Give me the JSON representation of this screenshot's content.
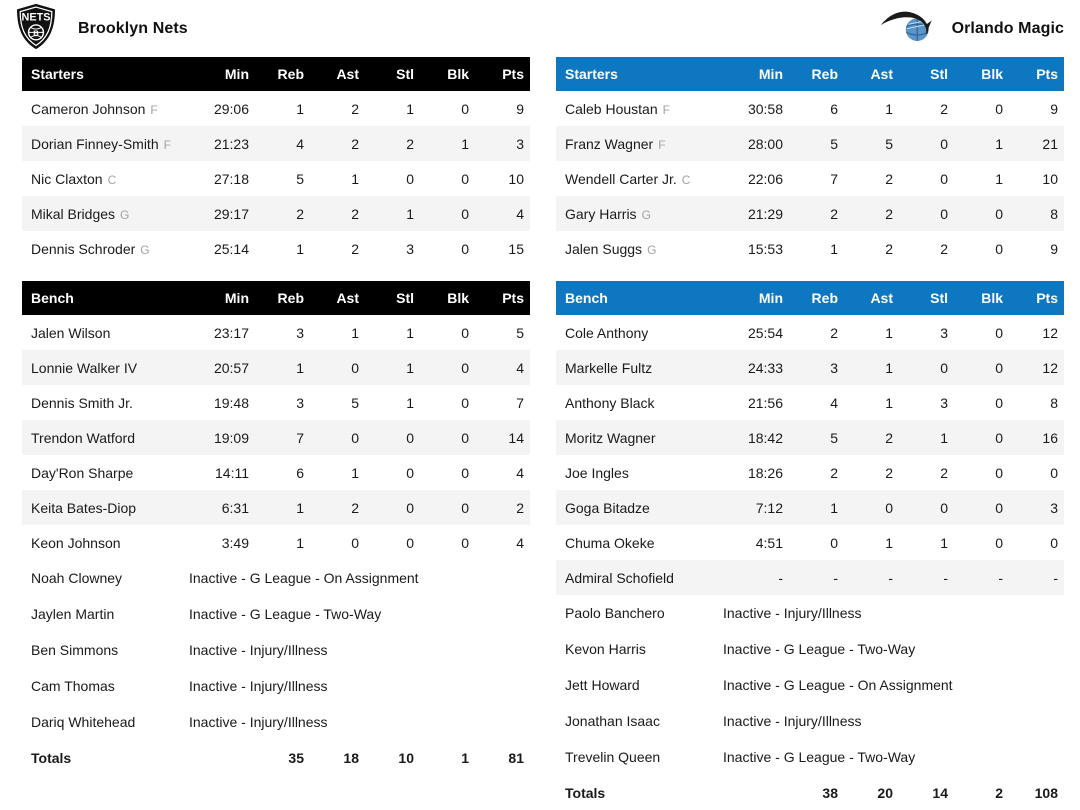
{
  "header": {
    "home": {
      "name": "Brooklyn Nets"
    },
    "away": {
      "name": "Orlando Magic"
    }
  },
  "colors": {
    "nets_accent": "#000000",
    "magic_accent": "#0e77c2",
    "alt_row": "#f4f4f4",
    "position_letter_gray": "#a3a3a3",
    "magic_ball_blue": "#5a94c8",
    "logo_black": "#111111"
  },
  "teams": [
    {
      "name": "Brooklyn Nets",
      "slug": "nets",
      "accent": "#000000",
      "starters_label": "Starters",
      "bench_label": "Bench",
      "stat_columns": [
        "Min",
        "Reb",
        "Ast",
        "Stl",
        "Blk",
        "Pts"
      ],
      "starters": [
        {
          "name": "Cameron Johnson",
          "pos": "F",
          "stats": [
            "29:06",
            "1",
            "2",
            "1",
            "0",
            "9"
          ]
        },
        {
          "name": "Dorian Finney-Smith",
          "pos": "F",
          "stats": [
            "21:23",
            "4",
            "2",
            "2",
            "1",
            "3"
          ]
        },
        {
          "name": "Nic Claxton",
          "pos": "C",
          "stats": [
            "27:18",
            "5",
            "1",
            "0",
            "0",
            "10"
          ]
        },
        {
          "name": "Mikal Bridges",
          "pos": "G",
          "stats": [
            "29:17",
            "2",
            "2",
            "1",
            "0",
            "4"
          ]
        },
        {
          "name": "Dennis Schroder",
          "pos": "G",
          "stats": [
            "25:14",
            "1",
            "2",
            "3",
            "0",
            "15"
          ]
        }
      ],
      "bench": [
        {
          "name": "Jalen Wilson",
          "pos": "",
          "stats": [
            "23:17",
            "3",
            "1",
            "1",
            "0",
            "5"
          ]
        },
        {
          "name": "Lonnie Walker IV",
          "pos": "",
          "stats": [
            "20:57",
            "1",
            "0",
            "1",
            "0",
            "4"
          ]
        },
        {
          "name": "Dennis Smith Jr.",
          "pos": "",
          "stats": [
            "19:48",
            "3",
            "5",
            "1",
            "0",
            "7"
          ]
        },
        {
          "name": "Trendon Watford",
          "pos": "",
          "stats": [
            "19:09",
            "7",
            "0",
            "0",
            "0",
            "14"
          ]
        },
        {
          "name": "Day'Ron Sharpe",
          "pos": "",
          "stats": [
            "14:11",
            "6",
            "1",
            "0",
            "0",
            "4"
          ]
        },
        {
          "name": "Keita Bates-Diop",
          "pos": "",
          "stats": [
            "6:31",
            "1",
            "2",
            "0",
            "0",
            "2"
          ]
        },
        {
          "name": "Keon Johnson",
          "pos": "",
          "stats": [
            "3:49",
            "1",
            "0",
            "0",
            "0",
            "4"
          ]
        }
      ],
      "inactive": [
        {
          "name": "Noah Clowney",
          "status": "Inactive - G League - On Assignment"
        },
        {
          "name": "Jaylen Martin",
          "status": "Inactive - G League - Two-Way"
        },
        {
          "name": "Ben Simmons",
          "status": "Inactive - Injury/Illness"
        },
        {
          "name": "Cam Thomas",
          "status": "Inactive - Injury/Illness"
        },
        {
          "name": "Dariq Whitehead",
          "status": "Inactive - Injury/Illness"
        }
      ],
      "totals": {
        "label": "Totals",
        "stats": [
          "",
          "35",
          "18",
          "10",
          "1",
          "81"
        ]
      }
    },
    {
      "name": "Orlando Magic",
      "slug": "magic",
      "accent": "#0e77c2",
      "starters_label": "Starters",
      "bench_label": "Bench",
      "stat_columns": [
        "Min",
        "Reb",
        "Ast",
        "Stl",
        "Blk",
        "Pts"
      ],
      "starters": [
        {
          "name": "Caleb Houstan",
          "pos": "F",
          "stats": [
            "30:58",
            "6",
            "1",
            "2",
            "0",
            "9"
          ]
        },
        {
          "name": "Franz Wagner",
          "pos": "F",
          "stats": [
            "28:00",
            "5",
            "5",
            "0",
            "1",
            "21"
          ]
        },
        {
          "name": "Wendell Carter Jr.",
          "pos": "C",
          "stats": [
            "22:06",
            "7",
            "2",
            "0",
            "1",
            "10"
          ]
        },
        {
          "name": "Gary Harris",
          "pos": "G",
          "stats": [
            "21:29",
            "2",
            "2",
            "0",
            "0",
            "8"
          ]
        },
        {
          "name": "Jalen Suggs",
          "pos": "G",
          "stats": [
            "15:53",
            "1",
            "2",
            "2",
            "0",
            "9"
          ]
        }
      ],
      "bench": [
        {
          "name": "Cole Anthony",
          "pos": "",
          "stats": [
            "25:54",
            "2",
            "1",
            "3",
            "0",
            "12"
          ]
        },
        {
          "name": "Markelle Fultz",
          "pos": "",
          "stats": [
            "24:33",
            "3",
            "1",
            "0",
            "0",
            "12"
          ]
        },
        {
          "name": "Anthony Black",
          "pos": "",
          "stats": [
            "21:56",
            "4",
            "1",
            "3",
            "0",
            "8"
          ]
        },
        {
          "name": "Moritz Wagner",
          "pos": "",
          "stats": [
            "18:42",
            "5",
            "2",
            "1",
            "0",
            "16"
          ]
        },
        {
          "name": "Joe Ingles",
          "pos": "",
          "stats": [
            "18:26",
            "2",
            "2",
            "2",
            "0",
            "0"
          ]
        },
        {
          "name": "Goga Bitadze",
          "pos": "",
          "stats": [
            "7:12",
            "1",
            "0",
            "0",
            "0",
            "3"
          ]
        },
        {
          "name": "Chuma Okeke",
          "pos": "",
          "stats": [
            "4:51",
            "0",
            "1",
            "1",
            "0",
            "0"
          ]
        },
        {
          "name": "Admiral Schofield",
          "pos": "",
          "stats": [
            "-",
            "-",
            "-",
            "-",
            "-",
            "-"
          ]
        }
      ],
      "inactive": [
        {
          "name": "Paolo Banchero",
          "status": "Inactive - Injury/Illness"
        },
        {
          "name": "Kevon Harris",
          "status": "Inactive - G League - Two-Way"
        },
        {
          "name": "Jett Howard",
          "status": "Inactive - G League - On Assignment"
        },
        {
          "name": "Jonathan Isaac",
          "status": "Inactive - Injury/Illness"
        },
        {
          "name": "Trevelin Queen",
          "status": "Inactive - G League - Two-Way"
        }
      ],
      "totals": {
        "label": "Totals",
        "stats": [
          "",
          "38",
          "20",
          "14",
          "2",
          "108"
        ]
      }
    }
  ]
}
